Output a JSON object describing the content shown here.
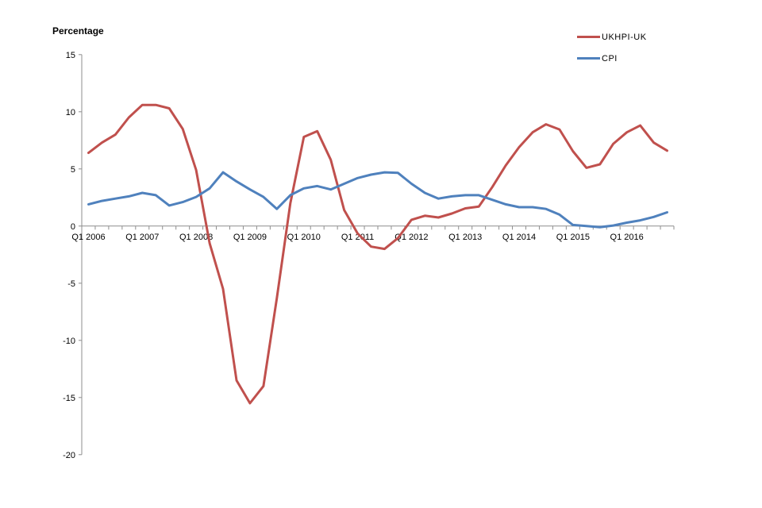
{
  "title": "Percentage",
  "legend": {
    "items": [
      {
        "label": "UKHPI-UK",
        "color": "#C0504D"
      },
      {
        "label": "CPI",
        "color": "#4F81BD"
      }
    ],
    "position": "top-right"
  },
  "chart_data": {
    "type": "line",
    "title": "Percentage",
    "xlabel": "",
    "ylabel": "Percentage",
    "ylim": [
      -20,
      15
    ],
    "yticks": [
      15,
      10,
      5,
      0,
      -5,
      -10,
      -15,
      -20
    ],
    "x_tick_every": 4,
    "x_tick_labels": [
      "Q1 2006",
      "Q1 2007",
      "Q1 2008",
      "Q1 2009",
      "Q1 2010",
      "Q1 2011",
      "Q1 2012",
      "Q1 2013",
      "Q1 2014",
      "Q1 2015",
      "Q1 2016"
    ],
    "categories": [
      "Q1 2006",
      "Q2 2006",
      "Q3 2006",
      "Q4 2006",
      "Q1 2007",
      "Q2 2007",
      "Q3 2007",
      "Q4 2007",
      "Q1 2008",
      "Q2 2008",
      "Q3 2008",
      "Q4 2008",
      "Q1 2009",
      "Q2 2009",
      "Q3 2009",
      "Q4 2009",
      "Q1 2010",
      "Q2 2010",
      "Q3 2010",
      "Q4 2010",
      "Q1 2011",
      "Q2 2011",
      "Q3 2011",
      "Q4 2011",
      "Q1 2012",
      "Q2 2012",
      "Q3 2012",
      "Q4 2012",
      "Q1 2013",
      "Q2 2013",
      "Q3 2013",
      "Q4 2013",
      "Q1 2014",
      "Q2 2014",
      "Q3 2014",
      "Q4 2014",
      "Q1 2015",
      "Q2 2015",
      "Q3 2015",
      "Q4 2015",
      "Q1 2016",
      "Q2 2016",
      "Q3 2016",
      "Q4 2016"
    ],
    "series": [
      {
        "name": "UKHPI-UK",
        "color": "#C0504D",
        "values": [
          6.4,
          7.3,
          8.0,
          9.5,
          10.6,
          10.6,
          10.3,
          8.5,
          4.9,
          -1.5,
          -5.5,
          -13.5,
          -15.5,
          -14.0,
          -6.3,
          2.0,
          7.8,
          8.3,
          5.8,
          1.4,
          -0.65,
          -1.8,
          -2.0,
          -1.05,
          0.55,
          0.9,
          0.75,
          1.1,
          1.55,
          1.7,
          3.4,
          5.3,
          6.9,
          8.2,
          8.9,
          8.45,
          6.55,
          5.1,
          5.4,
          7.2,
          8.2,
          8.8,
          7.3,
          6.6
        ]
      },
      {
        "name": "CPI",
        "color": "#4F81BD",
        "values": [
          1.9,
          2.2,
          2.4,
          2.6,
          2.9,
          2.7,
          1.8,
          2.1,
          2.55,
          3.3,
          4.7,
          3.9,
          3.2,
          2.55,
          1.5,
          2.7,
          3.3,
          3.5,
          3.2,
          3.7,
          4.2,
          4.5,
          4.7,
          4.65,
          3.7,
          2.9,
          2.4,
          2.6,
          2.7,
          2.7,
          2.3,
          1.9,
          1.65,
          1.65,
          1.5,
          1.0,
          0.1,
          0.0,
          -0.1,
          0.05,
          0.3,
          0.5,
          0.8,
          1.2
        ]
      }
    ],
    "grid": false,
    "legend_position": "top-right",
    "axis_color": "#8E8E8E"
  }
}
